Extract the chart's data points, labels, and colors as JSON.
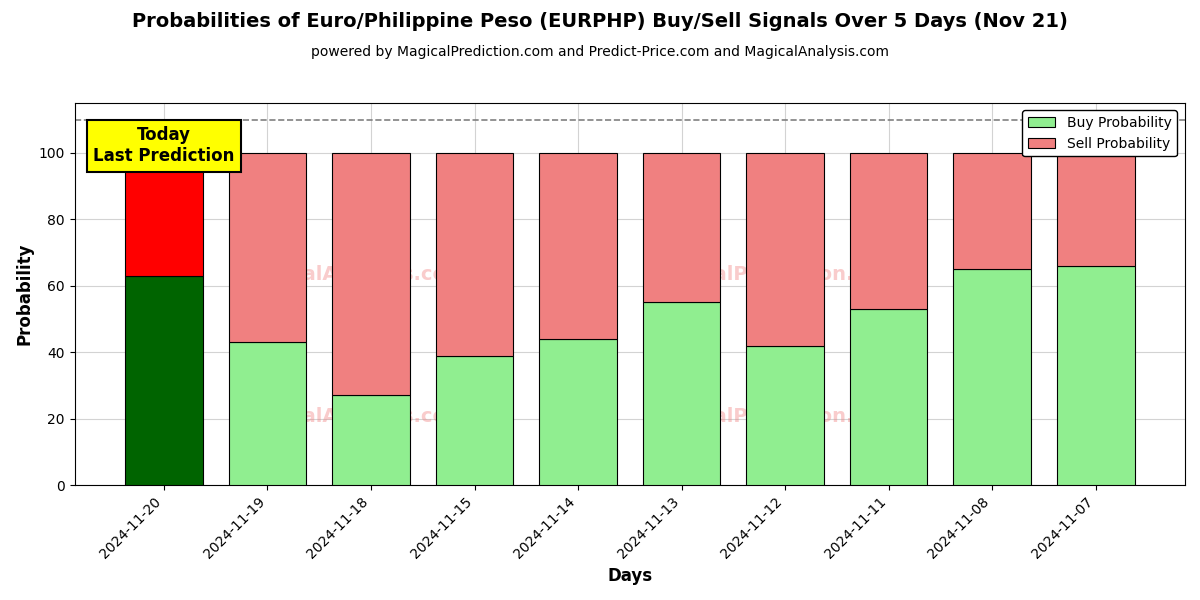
{
  "title": "Probabilities of Euro/Philippine Peso (EURPHP) Buy/Sell Signals Over 5 Days (Nov 21)",
  "subtitle": "powered by MagicalPrediction.com and Predict-Price.com and MagicalAnalysis.com",
  "xlabel": "Days",
  "ylabel": "Probability",
  "categories": [
    "2024-11-20",
    "2024-11-19",
    "2024-11-18",
    "2024-11-15",
    "2024-11-14",
    "2024-11-13",
    "2024-11-12",
    "2024-11-11",
    "2024-11-08",
    "2024-11-07"
  ],
  "buy_values": [
    63,
    43,
    27,
    39,
    44,
    55,
    42,
    53,
    65,
    66
  ],
  "sell_values": [
    37,
    57,
    73,
    61,
    56,
    45,
    58,
    47,
    35,
    34
  ],
  "today_buy_color": "#006400",
  "today_sell_color": "#FF0000",
  "buy_color": "#90EE90",
  "sell_color": "#F08080",
  "bar_edge_color": "#000000",
  "today_annotation_text": "Today\nLast Prediction",
  "today_annotation_bg": "#FFFF00",
  "dashed_line_y": 110,
  "ylim": [
    0,
    115
  ],
  "yticks": [
    0,
    20,
    40,
    60,
    80,
    100
  ],
  "watermark_color": "#F08080",
  "watermark_alpha": 0.4,
  "legend_buy_label": "Buy Probability",
  "legend_sell_label": "Sell Probability",
  "figsize": [
    12.0,
    6.0
  ],
  "dpi": 100
}
